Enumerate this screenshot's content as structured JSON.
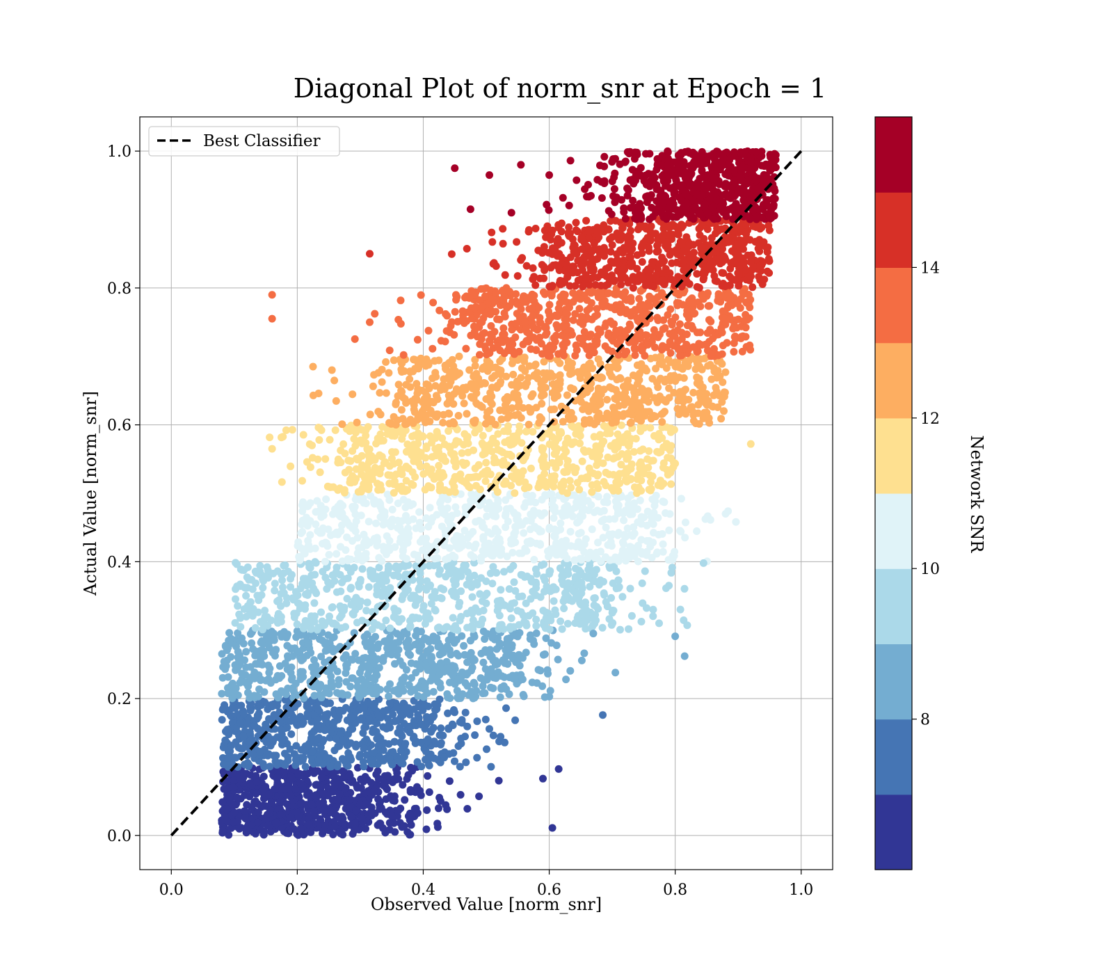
{
  "chart_data": {
    "type": "scatter",
    "title": "Diagonal Plot of norm_snr at Epoch = 1",
    "xlabel": "Observed Value [norm_snr]",
    "ylabel": "Actual Value [norm_snr]",
    "xlim": [
      -0.05,
      1.05
    ],
    "ylim": [
      -0.05,
      1.05
    ],
    "x_ticks": [
      0.0,
      0.2,
      0.4,
      0.6,
      0.8,
      1.0
    ],
    "y_ticks": [
      0.0,
      0.2,
      0.4,
      0.6,
      0.8,
      1.0
    ],
    "x_tick_labels": [
      "0.0",
      "0.2",
      "0.4",
      "0.6",
      "0.8",
      "1.0"
    ],
    "y_tick_labels": [
      "0.0",
      "0.2",
      "0.4",
      "0.6",
      "0.8",
      "1.0"
    ],
    "grid": true,
    "legend": {
      "position": "top-left",
      "entries": [
        "Best Classifier"
      ]
    },
    "reference_line": {
      "name": "Best Classifier",
      "style": "dashed",
      "color": "#000000",
      "x": [
        0.0,
        1.0
      ],
      "y": [
        0.0,
        1.0
      ]
    },
    "colorbar": {
      "label": "Network SNR",
      "min": 6.0,
      "max": 16.0,
      "ticks": [
        8,
        10,
        12,
        14
      ],
      "tick_labels": [
        "8",
        "10",
        "12",
        "14"
      ],
      "colors": [
        "#313695",
        "#4575b4",
        "#74add1",
        "#abd9e9",
        "#e0f3f8",
        "#fee090",
        "#fdae61",
        "#f46d43",
        "#d73027",
        "#a50026"
      ]
    },
    "bands": [
      {
        "y_range": [
          0.0,
          0.1
        ],
        "x_core": [
          0.08,
          0.3
        ],
        "color": "#313695"
      },
      {
        "y_range": [
          0.1,
          0.2
        ],
        "x_core": [
          0.08,
          0.38
        ],
        "color": "#4575b4"
      },
      {
        "y_range": [
          0.2,
          0.3
        ],
        "x_core": [
          0.08,
          0.5
        ],
        "color": "#74add1"
      },
      {
        "y_range": [
          0.3,
          0.4
        ],
        "x_core": [
          0.1,
          0.63
        ],
        "color": "#abd9e9"
      },
      {
        "y_range": [
          0.4,
          0.5
        ],
        "x_core": [
          0.2,
          0.7
        ],
        "color": "#e0f3f8"
      },
      {
        "y_range": [
          0.5,
          0.6
        ],
        "x_core": [
          0.32,
          0.8
        ],
        "color": "#fee090"
      },
      {
        "y_range": [
          0.6,
          0.7
        ],
        "x_core": [
          0.42,
          0.88
        ],
        "color": "#fdae61"
      },
      {
        "y_range": [
          0.7,
          0.8
        ],
        "x_core": [
          0.52,
          0.92
        ],
        "color": "#f46d43"
      },
      {
        "y_range": [
          0.8,
          0.9
        ],
        "x_core": [
          0.65,
          0.95
        ],
        "color": "#d73027"
      },
      {
        "y_range": [
          0.9,
          1.0
        ],
        "x_core": [
          0.78,
          0.96
        ],
        "color": "#a50026"
      }
    ],
    "outliers": [
      {
        "x": 0.16,
        "y": 0.79
      },
      {
        "x": 0.16,
        "y": 0.755
      },
      {
        "x": 0.315,
        "y": 0.85
      },
      {
        "x": 0.315,
        "y": 0.75
      },
      {
        "x": 0.45,
        "y": 0.975
      },
      {
        "x": 0.505,
        "y": 0.965
      },
      {
        "x": 0.555,
        "y": 0.98
      },
      {
        "x": 0.475,
        "y": 0.915
      },
      {
        "x": 0.54,
        "y": 0.91
      },
      {
        "x": 0.6,
        "y": 0.965
      },
      {
        "x": 0.16,
        "y": 0.565
      },
      {
        "x": 0.225,
        "y": 0.685
      },
      {
        "x": 0.255,
        "y": 0.68
      },
      {
        "x": 0.92,
        "y": 0.572
      },
      {
        "x": 0.88,
        "y": 0.47
      },
      {
        "x": 0.845,
        "y": 0.398
      },
      {
        "x": 0.79,
        "y": 0.365
      },
      {
        "x": 0.765,
        "y": 0.33
      },
      {
        "x": 0.8,
        "y": 0.291
      },
      {
        "x": 0.815,
        "y": 0.262
      },
      {
        "x": 0.705,
        "y": 0.238
      },
      {
        "x": 0.685,
        "y": 0.176
      },
      {
        "x": 0.615,
        "y": 0.097
      },
      {
        "x": 0.59,
        "y": 0.083
      },
      {
        "x": 0.605,
        "y": 0.011
      },
      {
        "x": 0.355,
        "y": 0.005
      },
      {
        "x": 0.405,
        "y": 0.009
      },
      {
        "x": 0.47,
        "y": 0.039
      },
      {
        "x": 0.52,
        "y": 0.08
      },
      {
        "x": 0.67,
        "y": 0.295
      }
    ]
  }
}
